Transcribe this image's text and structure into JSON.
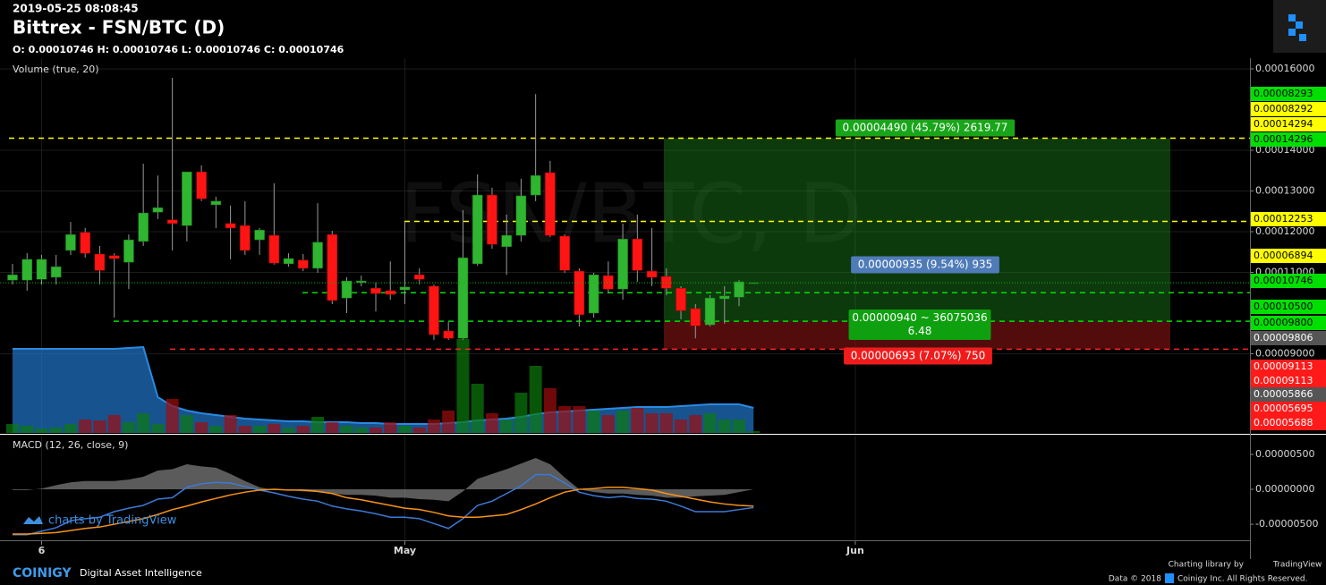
{
  "header": {
    "timestamp": "2019-05-25 08:08:45",
    "title": "Bittrex - FSN/BTC (D)",
    "ohlc": "O: 0.00010746 H: 0.00010746 L: 0.00010746 C: 0.00010746"
  },
  "footer": {
    "brand": "COINIGY",
    "tagline": "Digital Asset Intelligence",
    "library_by": "Charting library by",
    "library": "TradingView",
    "data": "Data © 2018",
    "rights": "Coinigy Inc. All Rights Reserved.",
    "charts_by": "charts by TradingView"
  },
  "chart_data": [
    {
      "type": "candlestick",
      "watermark": "FSN/BTC, D",
      "up_color": "#2fb52f",
      "down_color": "#ff1414",
      "xlim": [
        -0.862,
        85.16
      ],
      "xticks": [
        {
          "value": 2,
          "label": "6"
        },
        {
          "value": 27,
          "label": "May"
        },
        {
          "value": 58,
          "label": "Jun"
        }
      ],
      "ylim": [
        7.055e-05,
        0.00016264
      ],
      "yticks": [
        {
          "value": 0.00016,
          "label": "0.00016000"
        },
        {
          "value": 0.00014,
          "label": "0.00014000"
        },
        {
          "value": 0.00013,
          "label": "0.00013000"
        },
        {
          "value": 0.00012,
          "label": "0.00012000"
        },
        {
          "value": 0.00011,
          "label": "0.00011000"
        },
        {
          "value": 9e-05,
          "label": "0.00009000"
        }
      ],
      "grid": true,
      "open": [
        0.0001081,
        0.0001081,
        0.0001083,
        0.0001088,
        0.0001154,
        0.0001198,
        0.0001145,
        0.0001141,
        0.0001125,
        0.0001176,
        0.0001248,
        0.0001229,
        0.0001215,
        0.0001347,
        0.0001266,
        0.000122,
        0.0001215,
        0.000118,
        0.0001191,
        0.0001121,
        0.000113,
        0.000111,
        0.0001193,
        0.0001037,
        0.0001075,
        0.0001061,
        0.0001055,
        0.0001057,
        0.0001094,
        0.0001066,
        9.56e-05,
        9.38e-05,
        0.0001121,
        0.000129,
        0.0001163,
        0.0001191,
        0.000129,
        0.0001345,
        0.0001189,
        0.0001103,
        0.0001,
        0.0001092,
        0.0001059,
        0.0001182,
        0.0001103,
        0.000109,
        0.0001061,
        0.0001011,
        9.71e-05,
        0.0001035,
        0.0001039,
        0.00010746
      ],
      "high": [
        0.0001121,
        0.0001147,
        0.0001143,
        0.0001143,
        0.0001224,
        0.0001209,
        0.0001165,
        0.0001147,
        0.0001193,
        0.0001367,
        0.0001338,
        0.0001578,
        0.0001347,
        0.0001363,
        0.0001286,
        0.0001264,
        0.0001275,
        0.0001209,
        0.0001319,
        0.0001147,
        0.0001145,
        0.000127,
        0.0001202,
        0.0001088,
        0.0001092,
        0.0001075,
        0.0001127,
        0.0001224,
        0.000111,
        0.000107,
        9.78e-05,
        0.0001253,
        0.0001341,
        0.0001308,
        0.0001242,
        0.000133,
        0.0001538,
        0.0001374,
        0.0001193,
        0.000111,
        0.0001099,
        0.0001127,
        0.000122,
        0.0001242,
        0.0001209,
        0.000111,
        0.0001066,
        0.0001022,
        0.0001044,
        0.0001066,
        0.0001081,
        0.00010746
      ],
      "low": [
        0.000107,
        0.0001055,
        0.000107,
        0.000107,
        0.0001143,
        0.0001136,
        0.000107,
        9.89e-05,
        0.0001059,
        0.0001165,
        0.0001231,
        0.0001154,
        0.0001176,
        0.0001275,
        0.0001209,
        0.0001132,
        0.0001143,
        0.0001143,
        0.0001119,
        0.0001114,
        0.0001103,
        0.0001099,
        0.0001022,
        0.0001,
        0.0001066,
        0.0001004,
        0.0001033,
        0.0001022,
        0.000107,
        9.34e-05,
        9.34e-05,
        9.34e-05,
        0.0001116,
        0.0001158,
        0.0001094,
        0.0001176,
        0.0001275,
        0.0001187,
        0.0001099,
        9.67e-05,
        9.89e-05,
        0.0001048,
        0.0001033,
        0.0001077,
        0.0001066,
        0.0001044,
        9.85e-05,
        9.38e-05,
        9.67e-05,
        9.74e-05,
        0.0001017,
        0.00010746
      ],
      "close": [
        0.0001094,
        0.0001132,
        0.0001132,
        0.0001114,
        0.0001193,
        0.0001147,
        0.0001105,
        0.0001134,
        0.000118,
        0.0001246,
        0.0001259,
        0.000122,
        0.0001347,
        0.0001281,
        0.0001275,
        0.0001209,
        0.0001154,
        0.0001204,
        0.0001123,
        0.0001134,
        0.000111,
        0.0001174,
        0.0001031,
        0.0001079,
        0.0001079,
        0.0001048,
        0.0001046,
        0.0001064,
        0.0001083,
        9.47e-05,
        9.38e-05,
        0.0001136,
        0.000129,
        0.0001169,
        0.0001191,
        0.0001288,
        0.0001338,
        0.0001191,
        0.0001105,
        9.96e-05,
        0.0001094,
        0.0001059,
        0.0001182,
        0.0001105,
        0.0001088,
        0.0001061,
        0.0001006,
        9.69e-05,
        0.0001037,
        0.0001042,
        0.0001077,
        0.00010746
      ],
      "volume": {
        "name": "Volume (true, 20)",
        "ylim": [
          0,
          110
        ],
        "up_color": "#0b7a0b",
        "down_color": "#a00d0d",
        "ma_color": "#1f6fbf",
        "values": [
          10,
          8,
          5,
          6,
          10,
          15,
          14,
          20,
          12,
          22,
          10,
          38,
          20,
          12,
          8,
          20,
          8,
          8,
          10,
          6,
          8,
          18,
          12,
          8,
          6,
          6,
          12,
          8,
          6,
          15,
          25,
          105,
          55,
          22,
          15,
          45,
          75,
          50,
          30,
          30,
          25,
          20,
          25,
          28,
          22,
          22,
          15,
          20,
          22,
          15,
          15,
          2
        ],
        "ma": [
          94,
          94,
          94,
          94,
          94,
          94,
          94,
          94,
          95,
          96,
          40,
          30,
          25,
          22,
          20,
          18,
          16,
          15,
          14,
          13,
          13,
          12,
          12,
          12,
          11,
          11,
          10,
          10,
          10,
          10,
          11,
          12,
          14,
          15,
          16,
          18,
          21,
          23,
          24,
          25,
          26,
          27,
          28,
          29,
          29,
          29,
          30,
          31,
          32,
          32,
          32,
          28
        ]
      },
      "levels": [
        {
          "value": 0.00014296,
          "color": "#ffff00"
        },
        {
          "value": 0.00012253,
          "color": "#ffff00"
        },
        {
          "value": 0.000105,
          "color": "#00e000"
        },
        {
          "value": 9.8e-05,
          "color": "#00e000"
        },
        {
          "value": 9.113e-05,
          "color": "#ff2020"
        }
      ],
      "price_labels": [
        {
          "label": "0.00008293",
          "color": "#00e000",
          "text_color": "#000"
        },
        {
          "label": "0.00008292",
          "color": "#ffff00",
          "text_color": "#000"
        },
        {
          "label": "0.00014294",
          "color": "#ffff00",
          "text_color": "#000"
        },
        {
          "label": "0.00014296",
          "color": "#00e000",
          "text_color": "#000"
        },
        {
          "label": "0.00012253",
          "color": "#ffff00",
          "text_color": "#000"
        },
        {
          "label": "0.00006894",
          "color": "#ffff00",
          "text_color": "#000"
        },
        {
          "label": "0.00010746",
          "color": "#00e000",
          "text_color": "#000"
        },
        {
          "label": "0.00010500",
          "color": "#00e000",
          "text_color": "#000"
        },
        {
          "label": "0.00009800",
          "color": "#00e000",
          "text_color": "#000"
        },
        {
          "label": "0.00009806",
          "color": "#555555",
          "text_color": "#fff"
        },
        {
          "label": "0.00009113",
          "color": "#ff1a1a",
          "text_color": "#fff"
        },
        {
          "label": "0.00009113",
          "color": "#ff1a1a",
          "text_color": "#fff"
        },
        {
          "label": "0.00005866",
          "color": "#555555",
          "text_color": "#fff"
        },
        {
          "label": "0.00005695",
          "color": "#ff1a1a",
          "text_color": "#fff"
        },
        {
          "label": "0.00005688",
          "color": "#ff1a1a",
          "text_color": "#fff"
        }
      ],
      "position_labels": [
        {
          "lines": [
            "0.00004490 (45.79%) 2619.77"
          ],
          "color": "#19a519"
        },
        {
          "lines": [
            "0.00000935 (9.54%) 935"
          ],
          "color": "#4f7cb8"
        },
        {
          "lines": [
            "0.00000940 ~ 36075036",
            "6.48"
          ],
          "color": "#0fa00f"
        },
        {
          "lines": [
            "0.00000693 (7.07%) 750"
          ],
          "color": "#f01c1c"
        }
      ]
    },
    {
      "type": "line",
      "title": "MACD (12, 26, close, 9)",
      "ylim": [
        -7.3e-06,
        7.7e-06
      ],
      "yticks": [
        {
          "value": 5e-06,
          "label": "0.00000500"
        },
        {
          "value": 0,
          "label": "0.00000000"
        },
        {
          "value": -5e-06,
          "label": "-0.00000500"
        }
      ],
      "series": [
        {
          "type": "area",
          "color": "#7a7a7a",
          "values": [
            -1e-07,
            -1e-07,
            1e-07,
            6e-07,
            1e-06,
            1.2e-06,
            1.2e-06,
            1.2e-06,
            1.4e-06,
            1.8e-06,
            2.7e-06,
            2.9e-06,
            3.6e-06,
            3.3e-06,
            3.1e-06,
            2.2e-06,
            1.2e-06,
            3e-07,
            -1e-07,
            -1e-07,
            -3e-07,
            -4e-07,
            -6e-07,
            -8e-07,
            -8e-07,
            -9e-07,
            -1.2e-06,
            -1.2e-06,
            -1.4e-06,
            -1.5e-06,
            -1.7e-06,
            -3e-07,
            1.5e-06,
            2.2e-06,
            2.9e-06,
            3.7e-06,
            4.5e-06,
            3.6e-06,
            1.7e-06,
            0,
            -4e-07,
            -6e-07,
            -6e-07,
            -8e-07,
            -9e-07,
            -1.2e-06,
            -1.2e-06,
            -1e-06,
            -9e-07,
            -8e-07,
            -4e-07,
            0
          ]
        },
        {
          "color": "#3d7ad6",
          "values": [
            -6.5e-06,
            -6.5e-06,
            -6e-06,
            -5.5e-06,
            -4.5e-06,
            -4.2e-06,
            -4e-06,
            -3.2e-06,
            -2.7e-06,
            -2.3e-06,
            -1.4e-06,
            -1.2e-06,
            3e-07,
            8e-07,
            1e-06,
            9e-07,
            4e-07,
            -1e-07,
            -5e-07,
            -1e-06,
            -1.4e-06,
            -1.7e-06,
            -2.4e-06,
            -2.8e-06,
            -3.1e-06,
            -3.5e-06,
            -4e-06,
            -4e-06,
            -4.2e-06,
            -4.9e-06,
            -5.6e-06,
            -4.2e-06,
            -2.3e-06,
            -1.7e-06,
            -6e-07,
            5e-07,
            2.1e-06,
            2.1e-06,
            9e-07,
            -4e-07,
            -9e-07,
            -1.2e-06,
            -1e-06,
            -1.3e-06,
            -1.4e-06,
            -1.7e-06,
            -2.4e-06,
            -3.2e-06,
            -3.2e-06,
            -3.2e-06,
            -2.9e-06,
            -2.6e-06
          ]
        },
        {
          "color": "#f7931a",
          "values": [
            -6.4e-06,
            -6.4e-06,
            -6.3e-06,
            -6.2e-06,
            -5.9e-06,
            -5.6e-06,
            -5.4e-06,
            -5e-06,
            -4.6e-06,
            -4.2e-06,
            -3.6e-06,
            -2.9e-06,
            -2.4e-06,
            -1.8e-06,
            -1.3e-06,
            -8e-07,
            -4e-07,
            -1e-07,
            0,
            -1e-07,
            -1e-07,
            -3e-07,
            -6e-07,
            -1.2e-06,
            -1.5e-06,
            -1.9e-06,
            -2.3e-06,
            -2.7e-06,
            -2.9e-06,
            -3.3e-06,
            -3.8e-06,
            -4e-06,
            -4e-06,
            -3.8e-06,
            -3.6e-06,
            -2.9e-06,
            -2.1e-06,
            -1.2e-06,
            -4e-07,
            0,
            1e-07,
            3e-07,
            3e-07,
            1e-07,
            -1e-07,
            -6e-07,
            -1e-06,
            -1.4e-06,
            -1.8e-06,
            -2.1e-06,
            -2.3e-06,
            -2.4e-06
          ]
        }
      ]
    }
  ]
}
